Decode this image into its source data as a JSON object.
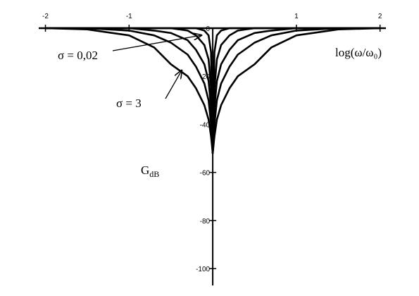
{
  "chart_data": {
    "type": "line",
    "xlabel": "log(ω/ω₀)",
    "ylabel": "G",
    "ylabel_subscript": "dB",
    "annotations": [
      "σ = 0,02",
      "σ = 3"
    ],
    "x": [
      -2,
      -1.5,
      -1,
      -0.7,
      -0.5,
      -0.3,
      -0.2,
      -0.1,
      -0.05,
      -0.02,
      0,
      0.02,
      0.05,
      0.1,
      0.2,
      0.3,
      0.5,
      0.7,
      1,
      1.5,
      2
    ],
    "series": [
      {
        "color": "#000000",
        "values": [
          0,
          -0.5,
          -3,
          -8,
          -15,
          -20,
          -25,
          -32,
          -38,
          -45,
          -52,
          -45,
          -38,
          -32,
          -25,
          -20,
          -15,
          -8,
          -3,
          -0.5,
          0
        ]
      },
      {
        "color": "#000000",
        "values": [
          0,
          0,
          -1,
          -3,
          -6,
          -11,
          -16,
          -23,
          -30,
          -40,
          -52,
          -40,
          -30,
          -23,
          -16,
          -11,
          -6,
          -3,
          -1,
          0,
          0
        ]
      },
      {
        "color": "#000000",
        "values": [
          0,
          0,
          0,
          -1,
          -2,
          -5,
          -9,
          -15,
          -22,
          -33,
          -52,
          -33,
          -22,
          -15,
          -9,
          -5,
          -2,
          -1,
          0,
          0,
          0
        ]
      },
      {
        "color": "#000000",
        "values": [
          0,
          0,
          0,
          0,
          0,
          -1,
          -3,
          -7,
          -13,
          -25,
          -52,
          -25,
          -13,
          -7,
          -3,
          -1,
          0,
          0,
          0,
          0,
          0
        ]
      },
      {
        "color": "#000000",
        "values": [
          0,
          0,
          0,
          0,
          0,
          0,
          0,
          -1,
          -3,
          -10,
          -52,
          -10,
          -3,
          -1,
          0,
          0,
          0,
          0,
          0,
          0,
          0
        ]
      }
    ],
    "xlim": [
      -2.08,
      2.07
    ],
    "xticks": [
      -2,
      -1,
      1,
      2
    ],
    "ylim": [
      -107,
      0
    ],
    "yticks": [
      -100,
      -80,
      -60,
      -40,
      -20,
      0
    ]
  }
}
